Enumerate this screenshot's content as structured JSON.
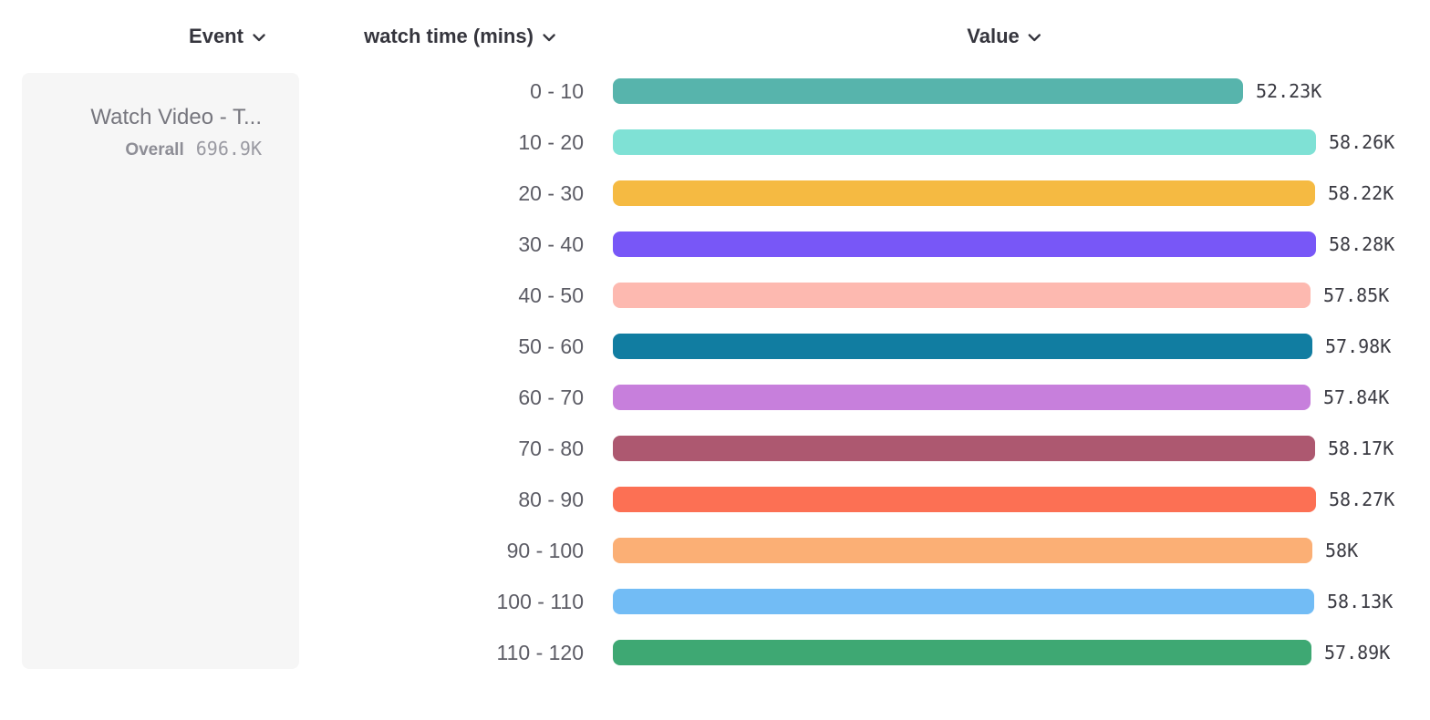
{
  "header": {
    "columns": [
      {
        "label": "Event"
      },
      {
        "label": "watch time (mins)"
      },
      {
        "label": "Value"
      }
    ]
  },
  "event_card": {
    "title": "Watch Video - T...",
    "overall_label": "Overall",
    "overall_value": "696.9K"
  },
  "chart_data": {
    "type": "bar",
    "orientation": "horizontal",
    "title": "",
    "xlabel": "Value",
    "ylabel": "watch time (mins)",
    "xlim": [
      0,
      58280
    ],
    "grid": false,
    "categories": [
      "0 - 10",
      "10 - 20",
      "20 - 30",
      "30 - 40",
      "40 - 50",
      "50 - 60",
      "60 - 70",
      "70 - 80",
      "80 - 90",
      "90 - 100",
      "100 - 110",
      "110 - 120"
    ],
    "values": [
      52230,
      58260,
      58220,
      58280,
      57850,
      57980,
      57840,
      58170,
      58270,
      58000,
      58130,
      57890
    ],
    "value_labels": [
      "52.23K",
      "58.26K",
      "58.22K",
      "58.28K",
      "57.85K",
      "57.98K",
      "57.84K",
      "58.17K",
      "58.27K",
      "58K",
      "58.13K",
      "57.89K"
    ],
    "bar_colors": [
      "#57b4ac",
      "#7fe1d5",
      "#f5ba42",
      "#7857f7",
      "#fdb9b0",
      "#117da1",
      "#c77fdc",
      "#ad5870",
      "#fc7054",
      "#fbaf75",
      "#72bcf5",
      "#3ea873"
    ]
  }
}
